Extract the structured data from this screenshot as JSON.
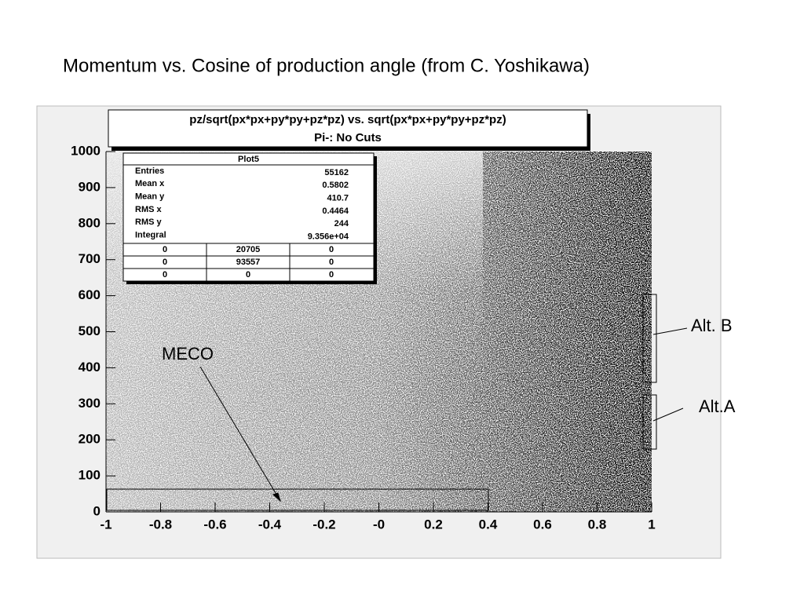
{
  "slide_title": "Momentum vs. Cosine of production angle (from C. Yoshikawa)",
  "chart_data": {
    "type": "scatter",
    "title": "pz/sqrt(px*px+py*py+pz*pz) vs. sqrt(px*px+py*py+pz*pz)",
    "subtitle": "Pi-: No Cuts",
    "xlim": [
      -1,
      1
    ],
    "ylim": [
      0,
      1000
    ],
    "xticks": [
      -1,
      -0.8,
      -0.6,
      -0.4,
      -0.2,
      {
        "value": 0,
        "label": "-0"
      },
      0.2,
      0.4,
      0.6,
      0.8,
      1
    ],
    "yticks": [
      0,
      100,
      200,
      300,
      400,
      500,
      600,
      700,
      800,
      900,
      1000
    ],
    "stats": {
      "title": "Plot5",
      "rows": [
        [
          "Entries",
          "55162"
        ],
        [
          "Mean x",
          "0.5802"
        ],
        [
          "Mean y",
          "410.7"
        ],
        [
          "RMS x",
          "0.4464"
        ],
        [
          "RMS y",
          "244"
        ],
        [
          "Integral",
          "9.356e+04"
        ]
      ],
      "grid": [
        [
          "0",
          "20705",
          "0"
        ],
        [
          "0",
          "93557",
          "0"
        ],
        [
          "0",
          "0",
          "0"
        ]
      ]
    },
    "annotations": [
      "MECO",
      "Alt. B",
      "Alt.A"
    ]
  }
}
